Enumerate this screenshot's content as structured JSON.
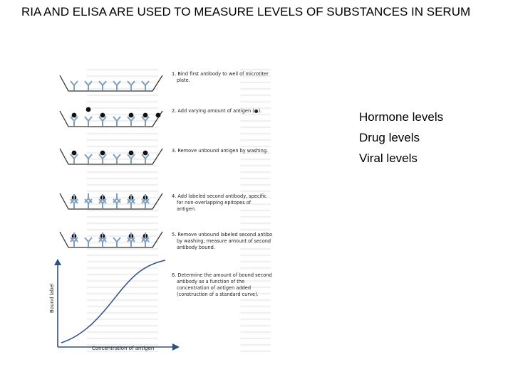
{
  "slide": {
    "title": "RIA AND  ELISA ARE USED TO MEASURE LEVELS OF SUBSTANCES IN SERUM",
    "bullets": [
      "Hormone levels",
      "Drug levels",
      "Viral levels"
    ]
  },
  "figure": {
    "steps": [
      {
        "lines": [
          "1. Bind first antibody to well of microtiter",
          "plate."
        ]
      },
      {
        "lines": [
          "2. Add varying amount of antigen (●)."
        ]
      },
      {
        "lines": [
          "3. Remove unbound antigen by washing."
        ]
      },
      {
        "lines": [
          "4. Add labeled second antibody, specific",
          "for non-overlapping epitopes of",
          "antigen."
        ]
      },
      {
        "lines": [
          "5. Remove unbound labeled second antibo",
          "by washing; measure amount of second",
          "antibody bound."
        ]
      },
      {
        "lines": [
          "6. Determine the amount of bound second",
          "antibody as a function of the",
          "concentration of antigen added",
          "(construction of a standard curve)."
        ]
      }
    ],
    "graph": {
      "ylabel": "Bound label",
      "xlabel": "Concentration of antigen"
    },
    "colors": {
      "antibody": "#7f9fbf",
      "curve": "#2d4f88",
      "antigen": "#111111",
      "well": "#333333"
    }
  }
}
